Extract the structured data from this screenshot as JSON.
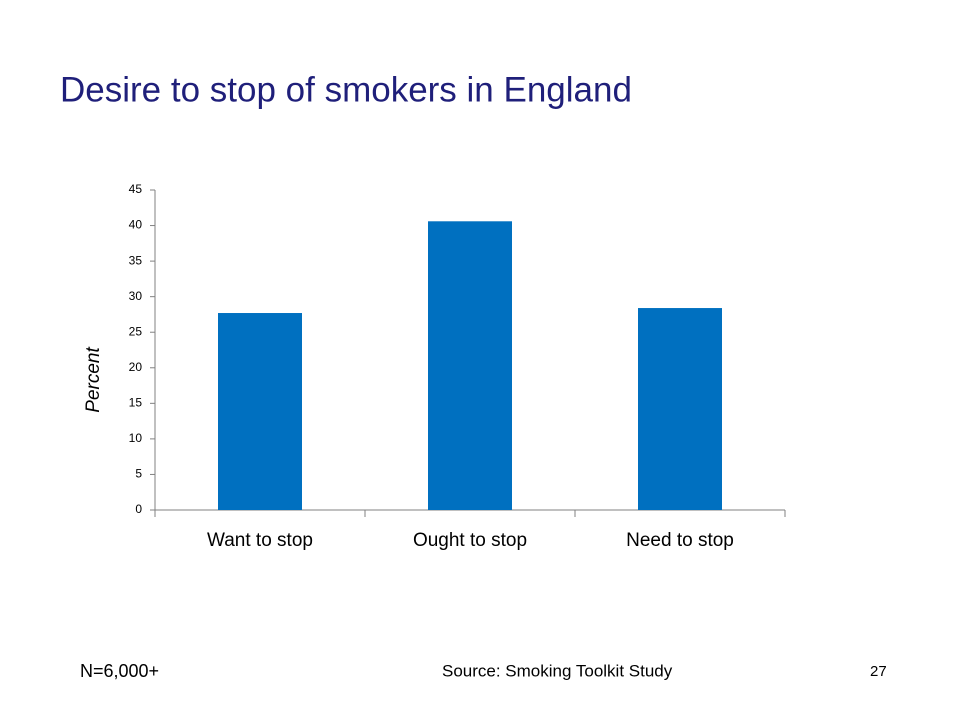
{
  "chart_data": {
    "type": "bar",
    "title": "Desire to stop of smokers in England",
    "y_label": "Percent",
    "categories": [
      "Want to stop",
      "Ought to stop",
      "Need to stop"
    ],
    "values": [
      27.7,
      40.6,
      28.4
    ],
    "color": "#0070c0",
    "ylim": [
      0,
      45
    ],
    "yticks": [
      0,
      5,
      10,
      15,
      20,
      25,
      30,
      35,
      40,
      45
    ],
    "grid": false,
    "note": "N=6,000+",
    "source": "Source: Smoking Toolkit Study",
    "page_number": "27"
  }
}
